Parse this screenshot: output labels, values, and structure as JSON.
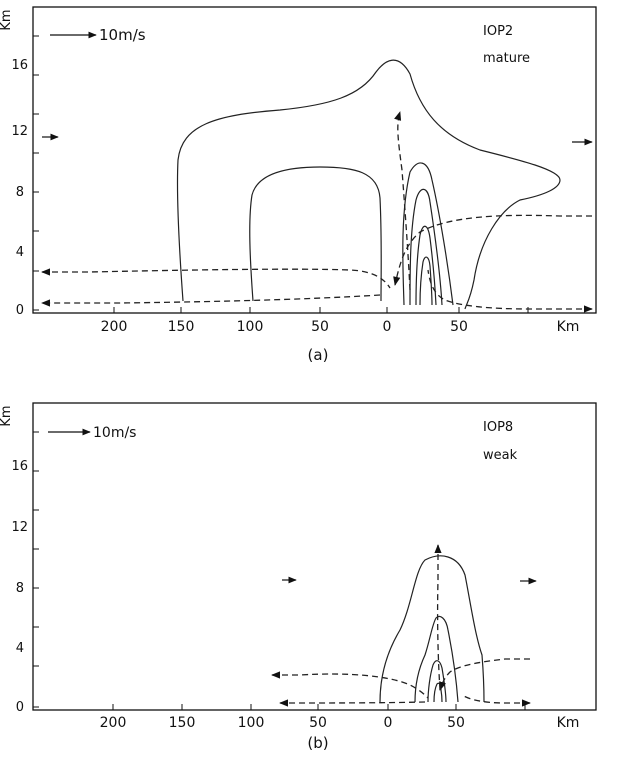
{
  "panels": [
    {
      "id": "a",
      "caption": "(a)",
      "case_label": "IOP2",
      "stage_label": "mature",
      "scale_label": "10m/s",
      "y_unit": "Km",
      "x_unit": "Km",
      "x_ticks": [
        "200",
        "150",
        "100",
        "50",
        "0",
        "50"
      ],
      "y_ticks": [
        "0",
        "4",
        "8",
        "12",
        "16"
      ]
    },
    {
      "id": "b",
      "caption": "(b)",
      "case_label": "IOP8",
      "stage_label": "weak",
      "scale_label": "10m/s",
      "y_unit": "Km",
      "x_unit": "Km",
      "x_ticks": [
        "200",
        "150",
        "100",
        "50",
        "0",
        "50"
      ],
      "y_ticks": [
        "0",
        "4",
        "8",
        "12",
        "16"
      ]
    }
  ]
}
